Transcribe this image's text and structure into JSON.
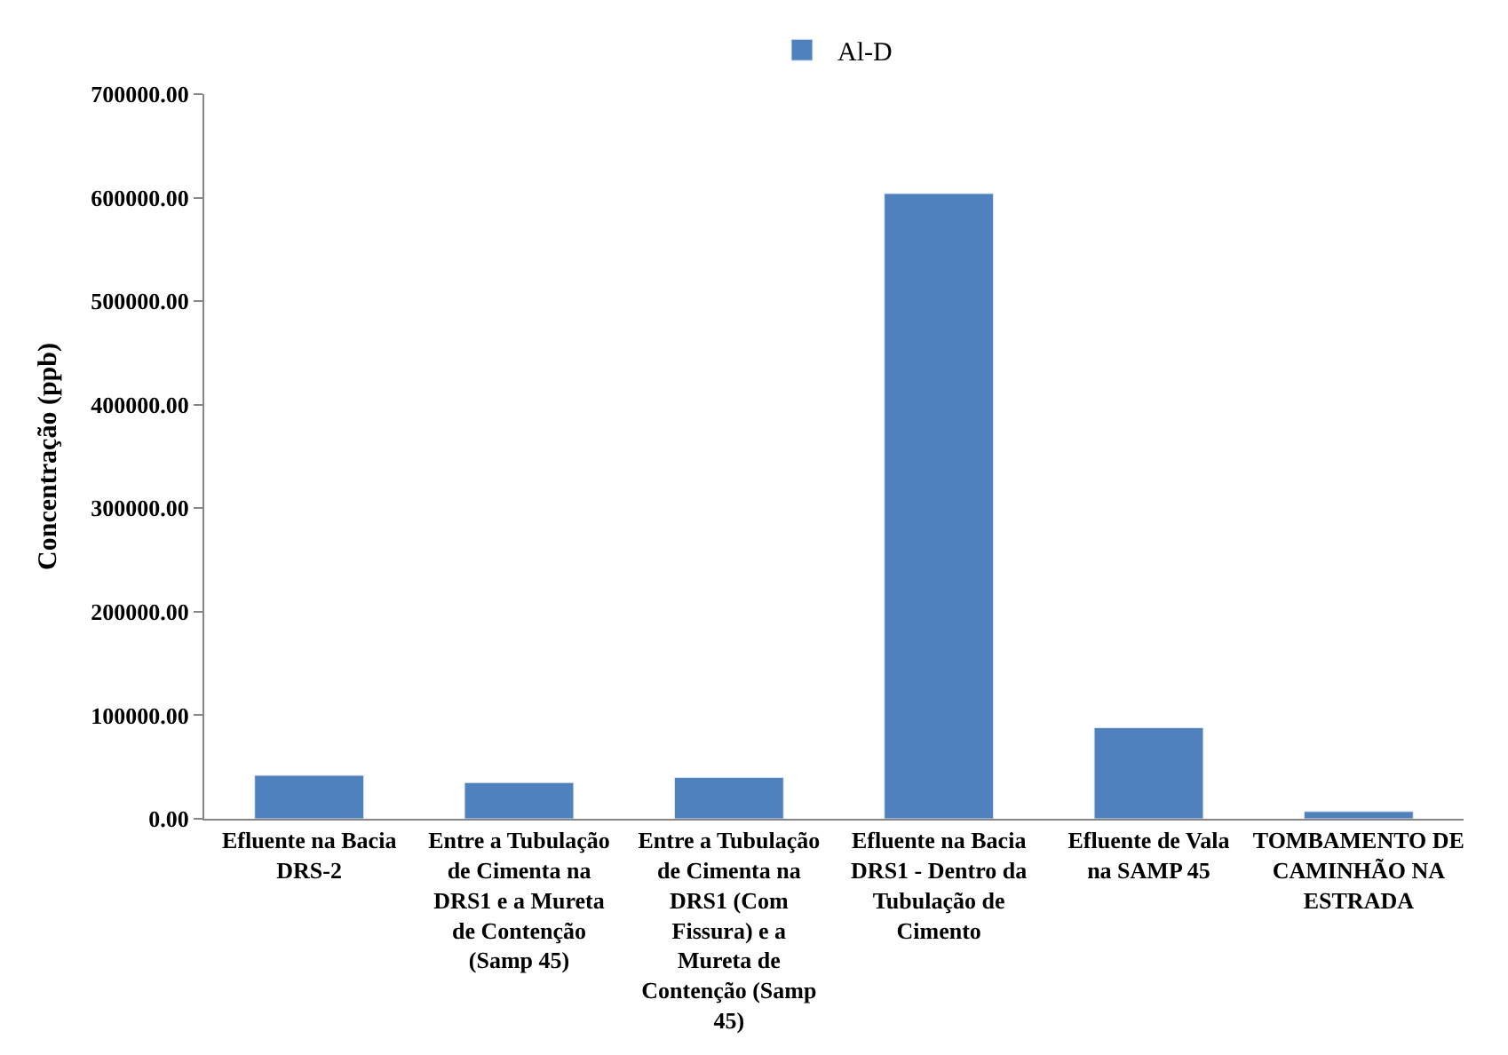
{
  "chart_data": {
    "type": "bar",
    "ylabel": "Concentração (ppb)",
    "categories": [
      "Efluente na Bacia DRS-2",
      "Entre a Tubulação de Cimenta na DRS1 e a Mureta de Contenção (Samp 45)",
      "Entre a Tubulação de Cimenta na DRS1 (Com Fissura) e a Mureta de Contenção (Samp 45)",
      "Efluente na Bacia DRS1 - Dentro da Tubulação de Cimento",
      "Efluente de Vala na SAMP 45",
      "TOMBAMENTO DE CAMINHÃO NA ESTRADA"
    ],
    "series": [
      {
        "name": "Al-D",
        "color": "#4f81bd",
        "values": [
          42000,
          35000,
          40000,
          604000,
          88000,
          7000
        ]
      }
    ],
    "ylim": [
      0,
      700000
    ],
    "yticks": [
      {
        "value": 0,
        "label": "0.00"
      },
      {
        "value": 100000,
        "label": "100000.00"
      },
      {
        "value": 200000,
        "label": "200000.00"
      },
      {
        "value": 300000,
        "label": "300000.00"
      },
      {
        "value": 400000,
        "label": "400000.00"
      },
      {
        "value": 500000,
        "label": "500000.00"
      },
      {
        "value": 600000,
        "label": "600000.00"
      },
      {
        "value": 700000,
        "label": "700000.00"
      }
    ],
    "legend": "top"
  }
}
